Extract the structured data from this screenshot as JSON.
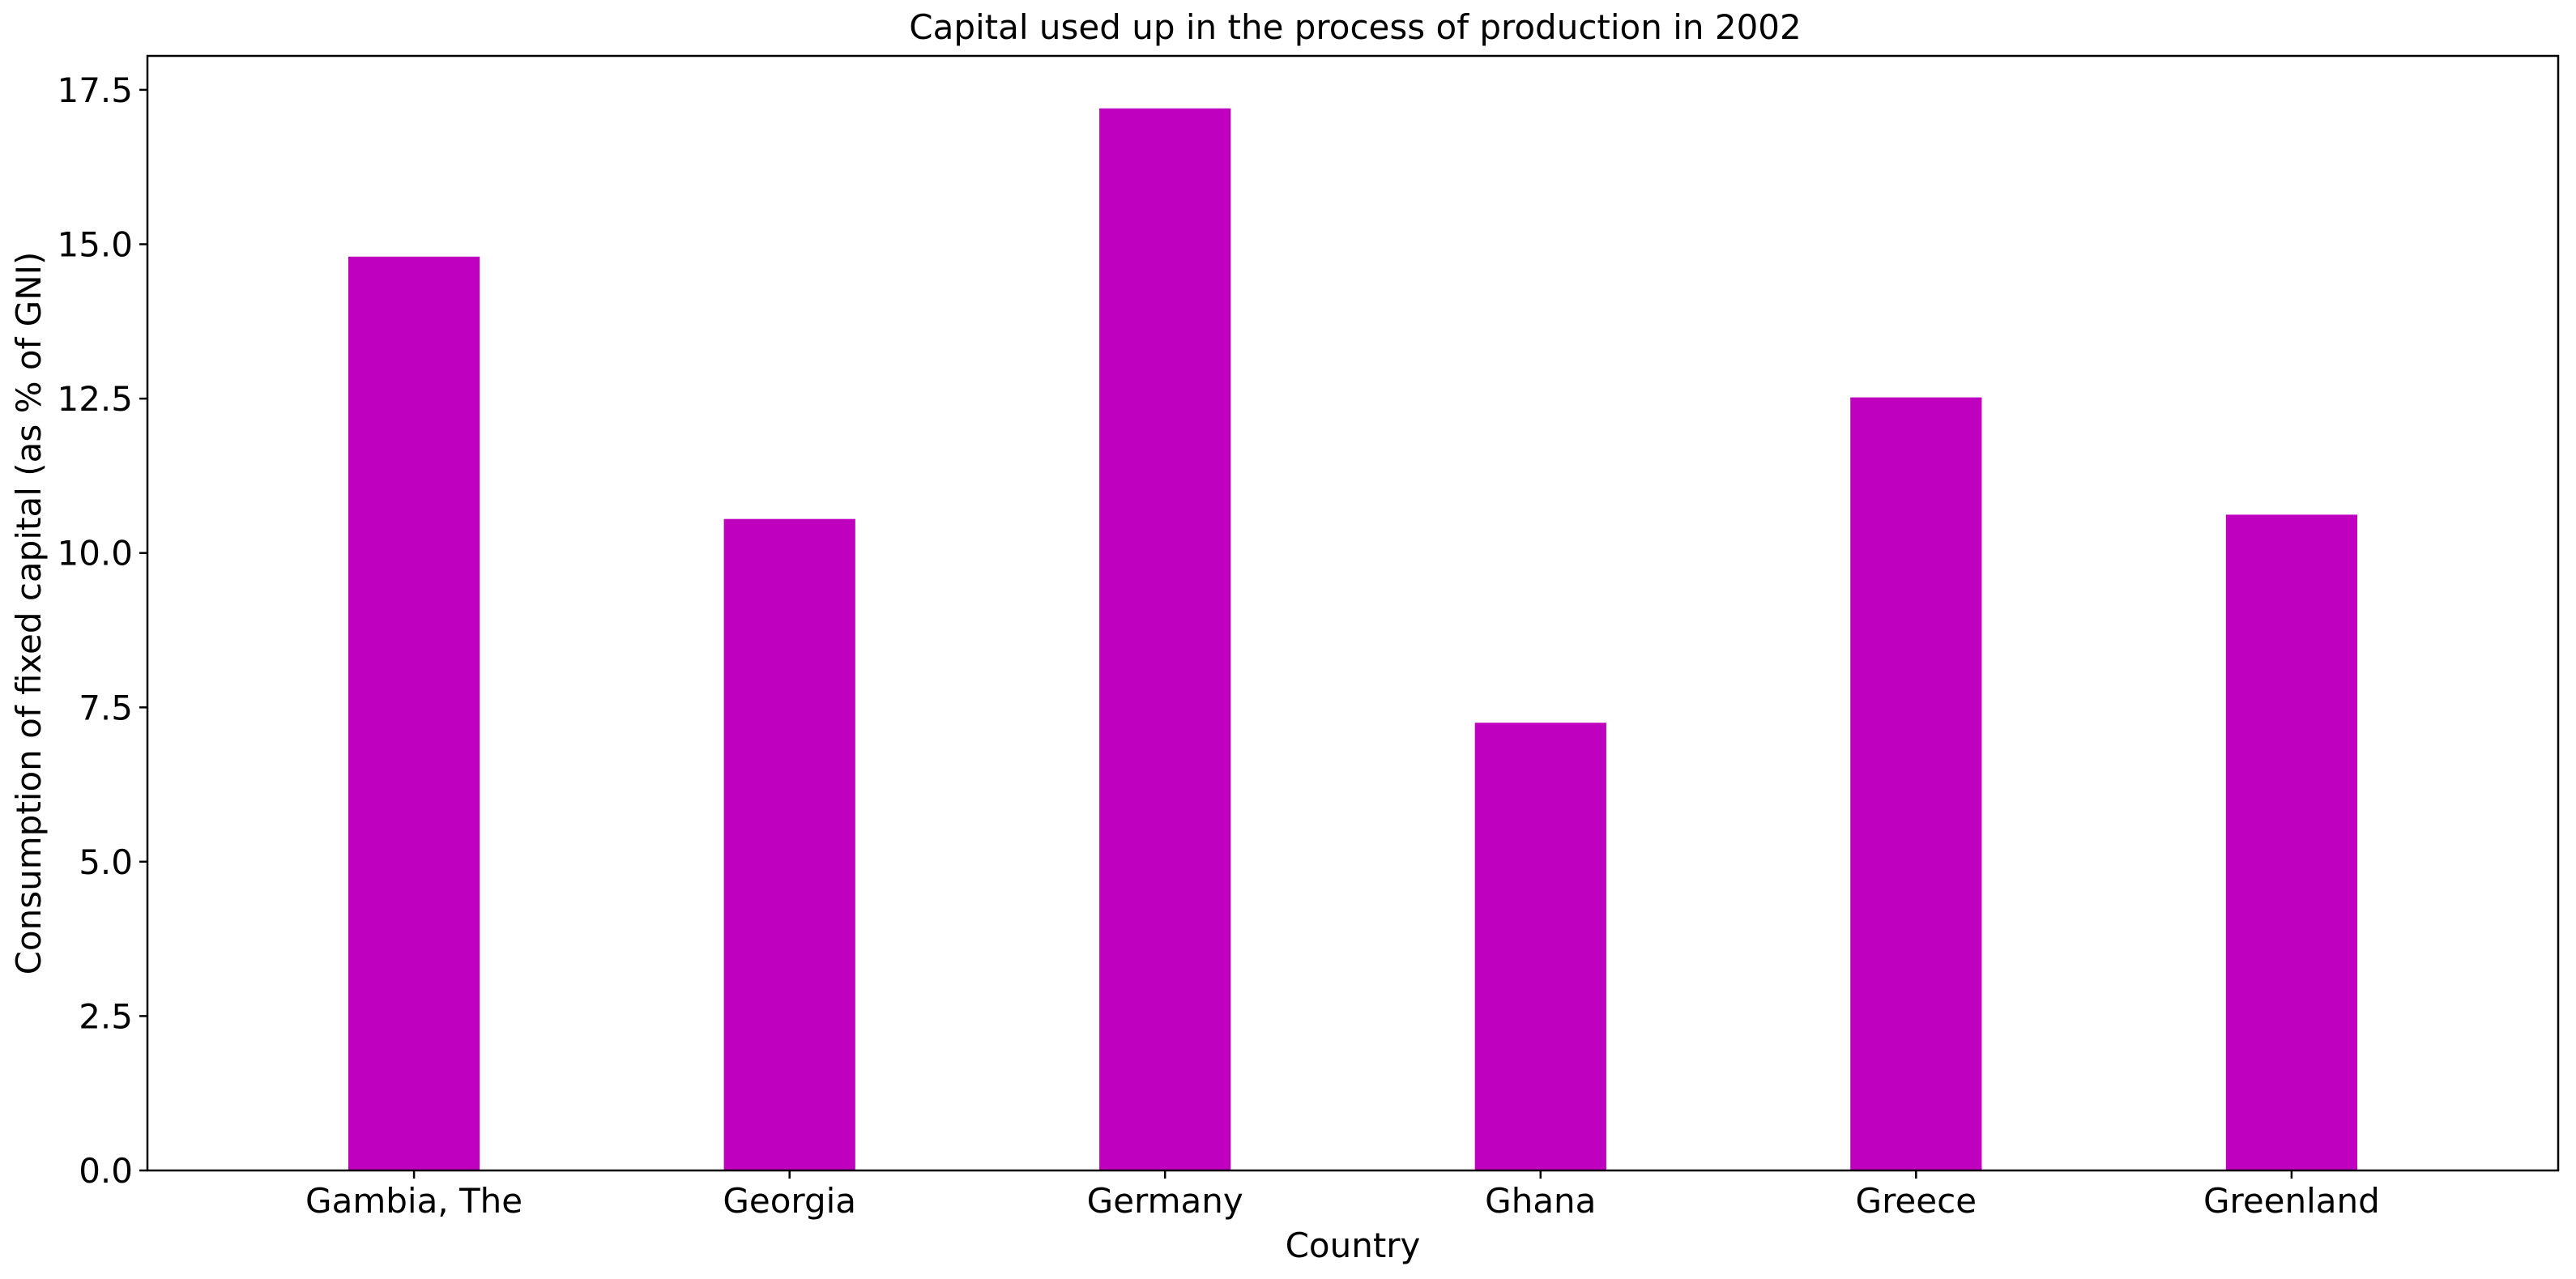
{
  "chart_data": {
    "type": "bar",
    "title": "Capital used up in the process of production in 2002",
    "xlabel": "Country",
    "ylabel": "Consumption of fixed capital (as % of GNI)",
    "categories": [
      "Gambia, The",
      "Georgia",
      "Germany",
      "Ghana",
      "Greece",
      "Greenland"
    ],
    "values": [
      14.8,
      10.55,
      17.2,
      7.25,
      12.52,
      10.62
    ],
    "ylim": [
      0,
      18.05
    ],
    "yticks": [
      "0.0",
      "2.5",
      "5.0",
      "7.5",
      "10.0",
      "12.5",
      "15.0",
      "17.5"
    ],
    "ytick_values": [
      0,
      2.5,
      5.0,
      7.5,
      10.0,
      12.5,
      15.0,
      17.5
    ],
    "grid": false,
    "legend": "none",
    "colors": {
      "bar": "#bf00bf",
      "axis": "#000000",
      "background": "#ffffff"
    }
  }
}
